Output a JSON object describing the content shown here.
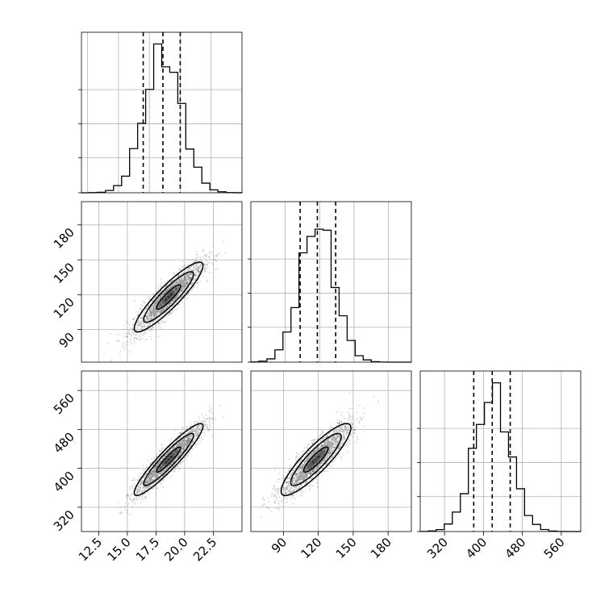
{
  "chart_data": {
    "type": "corner",
    "parameters": [
      {
        "name": "",
        "hist_range": [
          12.0,
          25.0
        ],
        "ticks": [
          "12.5",
          "15.0",
          "17.5",
          "20.0",
          "22.5"
        ],
        "tick_values": [
          12.5,
          15.0,
          17.5,
          20.0,
          22.5
        ],
        "mean": 18.6,
        "sd": 1.5,
        "quantiles": [
          17.0,
          18.6,
          20.0
        ],
        "hist_ylim": [
          0,
          0.28
        ]
      },
      {
        "name": "",
        "hist_range": [
          60,
          200
        ],
        "ticks": [
          "90",
          "120",
          "150",
          "180"
        ],
        "tick_values": [
          90,
          120,
          150,
          180
        ],
        "mean": 118,
        "sd": 15,
        "quantiles": [
          103,
          118,
          134
        ],
        "hist_ylim": [
          0,
          0.028
        ]
      },
      {
        "name": "",
        "hist_range": [
          270,
          600
        ],
        "ticks": [
          "320",
          "400",
          "480",
          "560"
        ],
        "tick_values": [
          320,
          400,
          480,
          560
        ],
        "mean": 418,
        "sd": 37,
        "quantiles": [
          380,
          418,
          455
        ],
        "hist_ylim": [
          0,
          0.0115
        ]
      }
    ],
    "correlations": {
      "0_1": 0.9,
      "0_2": 0.93,
      "1_2": 0.88
    },
    "quantiles": [
      0.16,
      0.5,
      0.84
    ],
    "samples_shown": "scatter with density contours",
    "grid": true,
    "colors": {
      "points": "#555555",
      "lines": "#000000",
      "grid": "#b0b0b0"
    }
  }
}
